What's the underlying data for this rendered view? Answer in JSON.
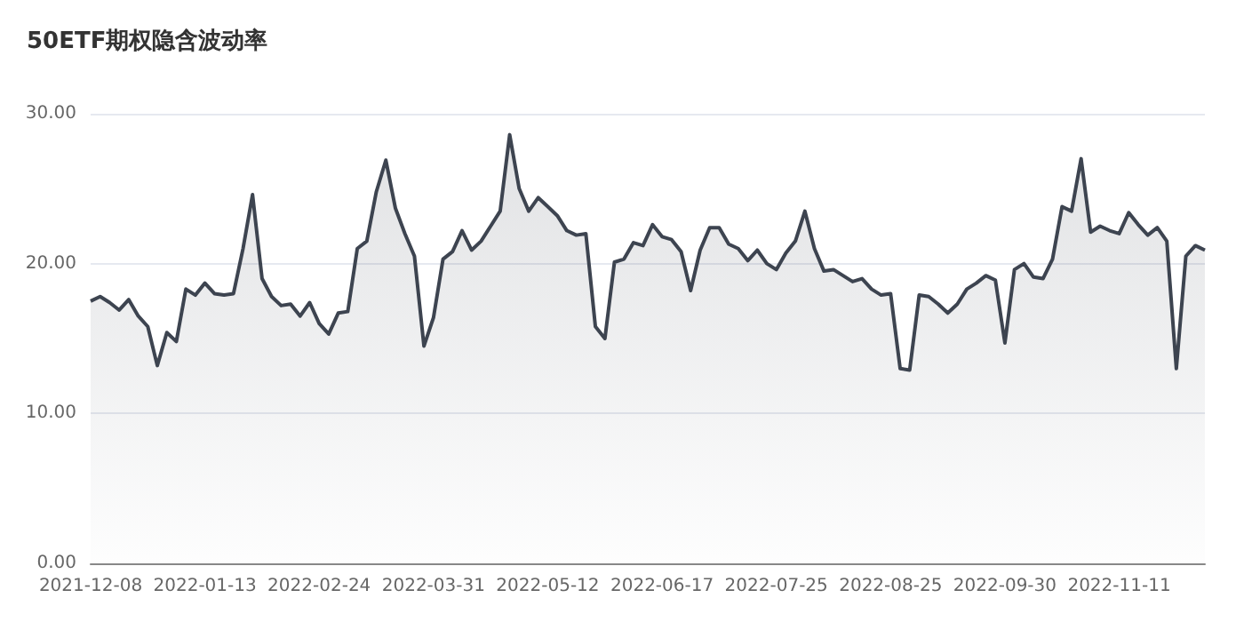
{
  "chart_data": {
    "type": "area",
    "title": "50ETF期权隐含波动率",
    "categories": [
      "2021-12-08",
      null,
      null,
      null,
      null,
      null,
      null,
      null,
      null,
      null,
      null,
      null,
      "2022-01-13",
      null,
      null,
      null,
      null,
      null,
      null,
      null,
      null,
      null,
      null,
      null,
      "2022-02-24",
      null,
      null,
      null,
      null,
      null,
      null,
      null,
      null,
      null,
      null,
      null,
      "2022-03-31",
      null,
      null,
      null,
      null,
      null,
      null,
      null,
      null,
      null,
      null,
      null,
      "2022-05-12",
      null,
      null,
      null,
      null,
      null,
      null,
      null,
      null,
      null,
      null,
      null,
      "2022-06-17",
      null,
      null,
      null,
      null,
      null,
      null,
      null,
      null,
      null,
      null,
      null,
      "2022-07-25",
      null,
      null,
      null,
      null,
      null,
      null,
      null,
      null,
      null,
      null,
      null,
      "2022-08-25",
      null,
      null,
      null,
      null,
      null,
      null,
      null,
      null,
      null,
      null,
      null,
      "2022-09-30",
      null,
      null,
      null,
      null,
      null,
      null,
      null,
      null,
      null,
      null,
      null,
      "2022-11-11",
      null,
      null,
      null,
      null,
      null,
      null,
      null,
      null,
      null
    ],
    "series": [
      {
        "color": "#3d4450",
        "values": [
          17.5,
          17.8,
          17.4,
          16.9,
          17.6,
          16.5,
          15.8,
          13.2,
          15.4,
          14.8,
          18.3,
          17.9,
          18.7,
          18.0,
          17.9,
          18.0,
          21.0,
          24.6,
          19.0,
          17.8,
          17.2,
          17.3,
          16.5,
          17.4,
          16.0,
          15.3,
          16.7,
          16.8,
          21.0,
          21.5,
          24.8,
          26.9,
          23.7,
          22.0,
          20.5,
          14.5,
          16.4,
          20.3,
          20.8,
          22.2,
          20.9,
          21.5,
          22.5,
          23.5,
          28.6,
          25.0,
          23.5,
          24.4,
          23.8,
          23.2,
          22.2,
          21.9,
          22.0,
          15.8,
          15.0,
          20.1,
          20.3,
          21.4,
          21.2,
          22.6,
          21.8,
          21.6,
          20.8,
          18.2,
          20.9,
          22.4,
          22.4,
          21.3,
          21.0,
          20.2,
          20.9,
          20.0,
          19.6,
          20.7,
          21.5,
          23.5,
          21.0,
          19.5,
          19.6,
          19.2,
          18.8,
          19.0,
          18.3,
          17.9,
          18.0,
          13.0,
          12.9,
          17.9,
          17.8,
          17.3,
          16.7,
          17.3,
          18.3,
          18.7,
          19.2,
          18.9,
          14.7,
          19.6,
          20.0,
          19.1,
          19.0,
          20.3,
          23.8,
          23.5,
          27.0,
          22.1,
          22.5,
          22.2,
          22.0,
          23.4,
          22.6,
          21.9,
          22.4,
          21.5,
          13.0,
          20.5,
          21.2,
          20.9
        ]
      }
    ],
    "ylim": [
      0,
      30
    ],
    "yticks": [
      {
        "value": 0,
        "label": "0.00"
      },
      {
        "value": 10,
        "label": "10.00"
      },
      {
        "value": 20,
        "label": "20.00"
      },
      {
        "value": 30,
        "label": "30.00"
      }
    ],
    "grid": "y",
    "marker": "none",
    "line_style": "solid"
  }
}
